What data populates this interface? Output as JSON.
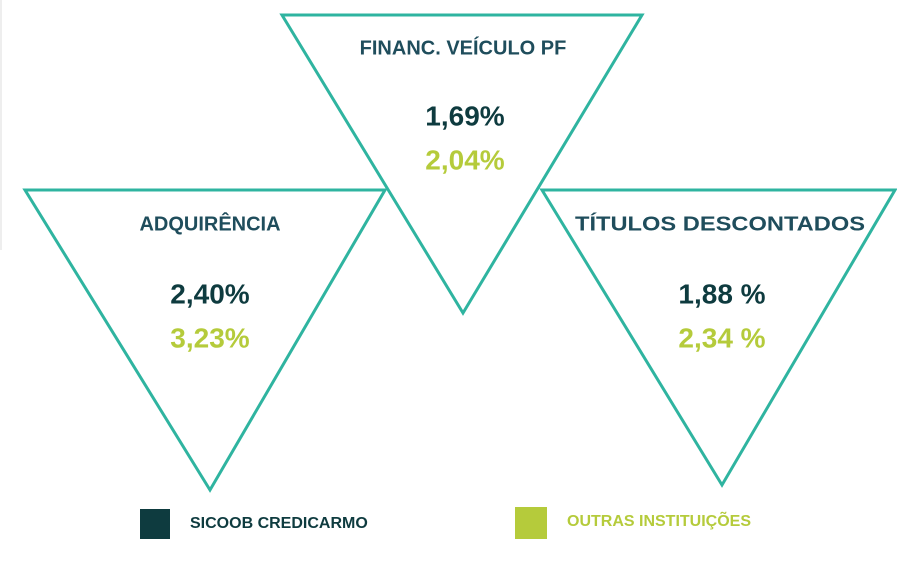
{
  "panels": [
    {
      "title": "ADQUIRÊNCIA",
      "sicoob": "2,40%",
      "outras": "3,23%"
    },
    {
      "title": "FINANC. VEÍCULO PF",
      "sicoob": "1,69%",
      "outras": "2,04%"
    },
    {
      "title": "TÍTULOS DESCONTADOS",
      "sicoob": "1,88 %",
      "outras": "2,34 %"
    }
  ],
  "legend": [
    {
      "label": "SICOOB CREDICARMO",
      "color": "#0e3b3f"
    },
    {
      "label": "OUTRAS INSTITUIÇÕES",
      "color": "#b5cb3b"
    }
  ]
}
